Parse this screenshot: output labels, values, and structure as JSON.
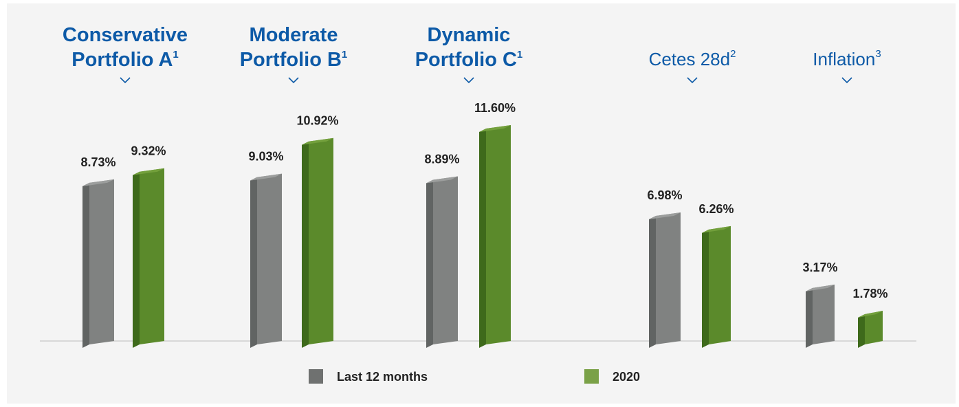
{
  "chart_data": {
    "type": "bar",
    "categories": [
      {
        "title_lines": [
          "Conservative",
          "Portfolio A"
        ],
        "superscript": "1",
        "style": "bold"
      },
      {
        "title_lines": [
          "Moderate",
          "Portfolio B"
        ],
        "superscript": "1",
        "style": "bold"
      },
      {
        "title_lines": [
          "Dynamic",
          "Portfolio C"
        ],
        "superscript": "1",
        "style": "bold"
      },
      {
        "title_lines": [
          "Cetes 28d"
        ],
        "superscript": "2",
        "style": "light"
      },
      {
        "title_lines": [
          "Inflation"
        ],
        "superscript": "3",
        "style": "light"
      }
    ],
    "series": [
      {
        "name": "Last 12 months",
        "color": "#7f8180",
        "values": [
          8.73,
          9.03,
          8.89,
          6.98,
          3.17
        ],
        "labels": [
          "8.73%",
          "9.03%",
          "8.89%",
          "6.98%",
          "3.17%"
        ]
      },
      {
        "name": "2020",
        "color": "#5a8a2a",
        "values": [
          9.32,
          10.92,
          11.6,
          6.26,
          1.78
        ],
        "labels": [
          "9.32%",
          "10.92%",
          "11.60%",
          "6.26%",
          "1.78%"
        ]
      }
    ],
    "legend_position": "bottom",
    "grid": false,
    "style": "3d-bars",
    "icons": [
      "chevron-down-icon"
    ]
  }
}
